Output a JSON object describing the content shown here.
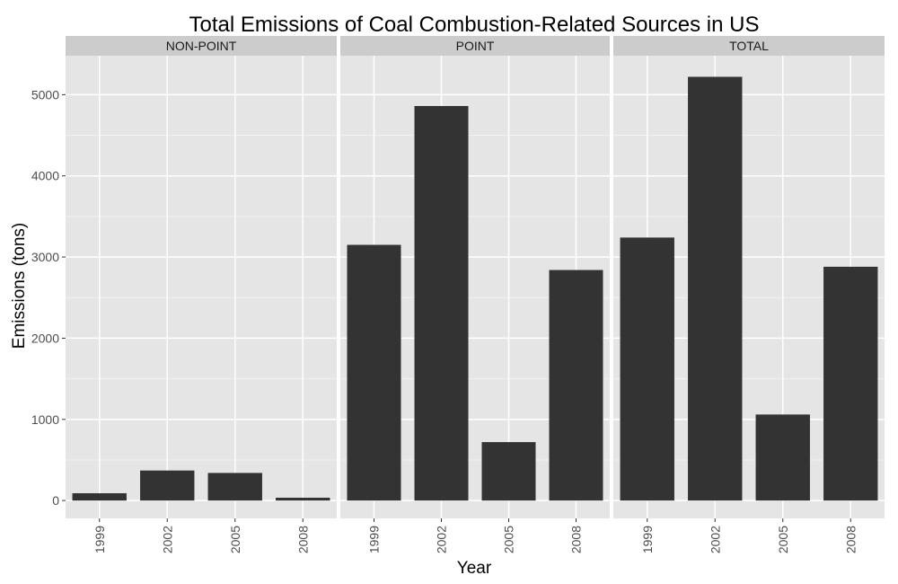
{
  "chart_data": {
    "type": "bar",
    "title": "Total Emissions of Coal Combustion-Related Sources in US",
    "xlabel": "Year",
    "ylabel": "Emissions (tons)",
    "categories": [
      "1999",
      "2002",
      "2005",
      "2008"
    ],
    "facets": [
      {
        "label": "NON-POINT",
        "values": [
          90,
          370,
          340,
          35
        ]
      },
      {
        "label": "POINT",
        "values": [
          3150,
          4860,
          720,
          2840
        ]
      },
      {
        "label": "TOTAL",
        "values": [
          3240,
          5220,
          1060,
          2880
        ]
      }
    ],
    "ylim": [
      -220,
      5480
    ],
    "yticks": [
      0,
      1000,
      2000,
      3000,
      4000,
      5000
    ],
    "grid": true,
    "colors": {
      "bar": "#333333",
      "panel": "#e5e5e5",
      "strip": "#cccccc",
      "grid_major": "#ffffff",
      "grid_minor": "#f2f2f2"
    }
  }
}
